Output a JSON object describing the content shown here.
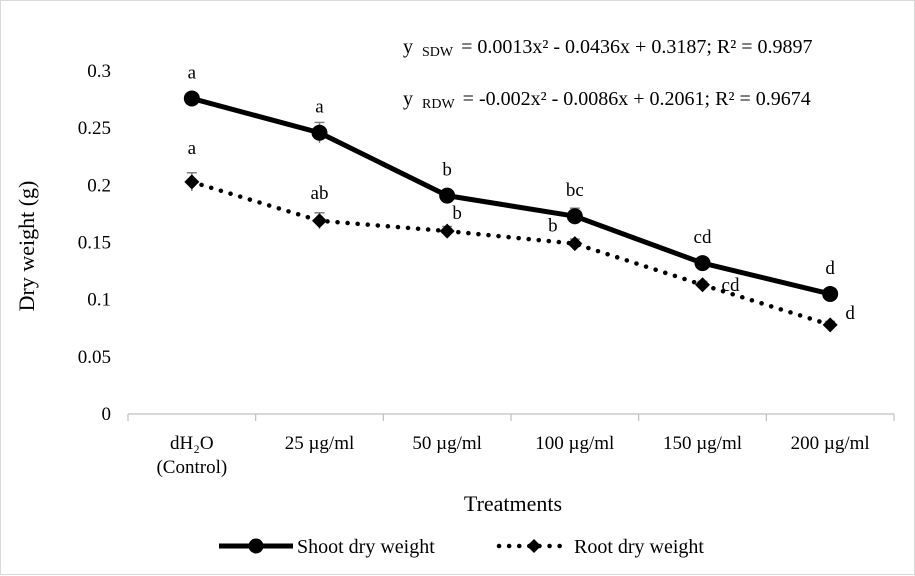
{
  "chart_data": {
    "type": "line",
    "title": "",
    "xlabel": "Treatments",
    "ylabel": "Dry weight (g)",
    "ylim": [
      0,
      0.3
    ],
    "yticks": [
      "0",
      "0.05",
      "0.1",
      "0.15",
      "0.2",
      "0.25",
      "0.3"
    ],
    "categories": [
      [
        "dH₂O",
        "(Control)"
      ],
      [
        "25 µg/ml"
      ],
      [
        "50 µg/ml"
      ],
      [
        "100 µg/ml"
      ],
      [
        "150 µg/ml"
      ],
      [
        "200 µg/ml"
      ]
    ],
    "legend_position": "bottom",
    "grid": false,
    "series": [
      {
        "name": "Shoot dry weight",
        "style": "solid",
        "marker": "circle",
        "color": "#000000",
        "values": [
          0.276,
          0.246,
          0.191,
          0.173,
          0.132,
          0.105
        ],
        "errors": [
          0.003,
          0.009,
          0.004,
          0.007,
          0.005,
          0.003
        ],
        "letters": [
          "a",
          "a",
          "b",
          "bc",
          "cd",
          "d"
        ]
      },
      {
        "name": "Root dry weight",
        "style": "dotted",
        "marker": "diamond",
        "color": "#000000",
        "values": [
          0.203,
          0.169,
          0.16,
          0.149,
          0.113,
          0.078
        ],
        "errors": [
          0.008,
          0.007,
          0.004,
          0.004,
          0.003,
          0.003
        ],
        "letters": [
          "a",
          "ab",
          "b",
          "b",
          "cd",
          "d"
        ]
      }
    ],
    "equations": [
      {
        "y": "y",
        "sub": "SDW",
        "rhs": "= 0.0013x² - 0.0436x + 0.3187; R² = 0.9897"
      },
      {
        "y": "y",
        "sub": "RDW",
        "rhs": "= -0.002x² - 0.0086x + 0.2061; R² = 0.9674"
      }
    ]
  }
}
